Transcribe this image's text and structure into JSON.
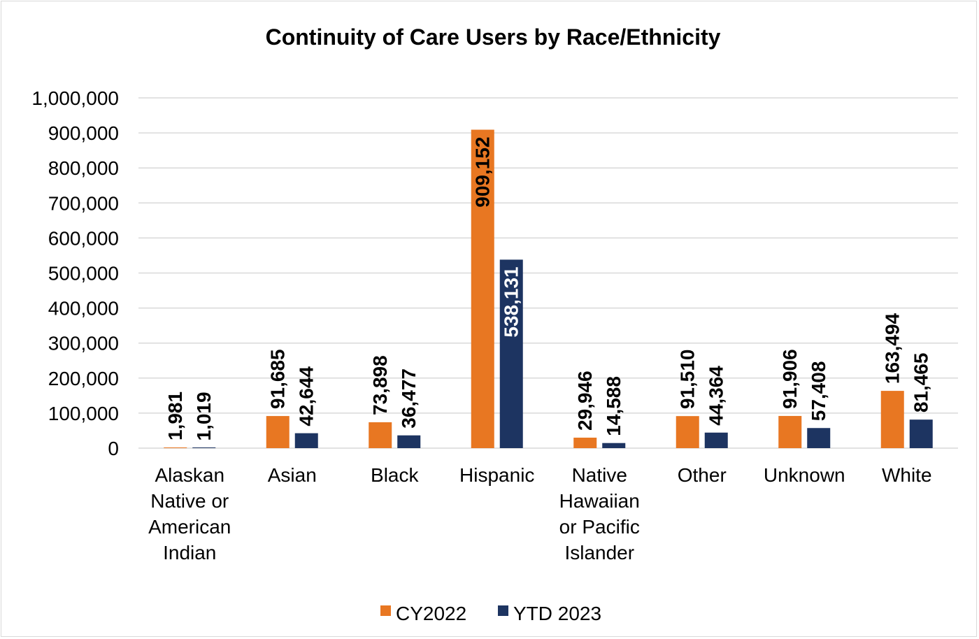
{
  "chart_data": {
    "type": "bar",
    "title": "Continuity of Care Users by Race/Ethnicity",
    "categories": [
      [
        "Alaskan",
        "Native or",
        "American",
        "Indian"
      ],
      [
        "Asian"
      ],
      [
        "Black"
      ],
      [
        "Hispanic"
      ],
      [
        "Native",
        "Hawaiian",
        "or Pacific",
        "Islander"
      ],
      [
        "Other"
      ],
      [
        "Unknown"
      ],
      [
        "White"
      ]
    ],
    "series": [
      {
        "name": "CY2022",
        "color": "#e87722",
        "values": [
          1981,
          91685,
          73898,
          909152,
          29946,
          91510,
          91906,
          163494
        ],
        "labels": [
          "1,981",
          "91,685",
          "73,898",
          "909,152",
          "29,946",
          "91,510",
          "91,906",
          "163,494"
        ]
      },
      {
        "name": "YTD 2023",
        "color": "#1d3461",
        "values": [
          1019,
          42644,
          36477,
          538131,
          14588,
          44364,
          57408,
          81465
        ],
        "labels": [
          "1,019",
          "42,644",
          "36,477",
          "538,131",
          "14,588",
          "44,364",
          "57,408",
          "81,465"
        ]
      }
    ],
    "yticks": [
      "0",
      "100,000",
      "200,000",
      "300,000",
      "400,000",
      "500,000",
      "600,000",
      "700,000",
      "800,000",
      "900,000",
      "1,000,000"
    ],
    "ylim": [
      0,
      1000000
    ],
    "grid": true,
    "legend_position": "bottom",
    "gridline_color": "#d9d9d9"
  }
}
